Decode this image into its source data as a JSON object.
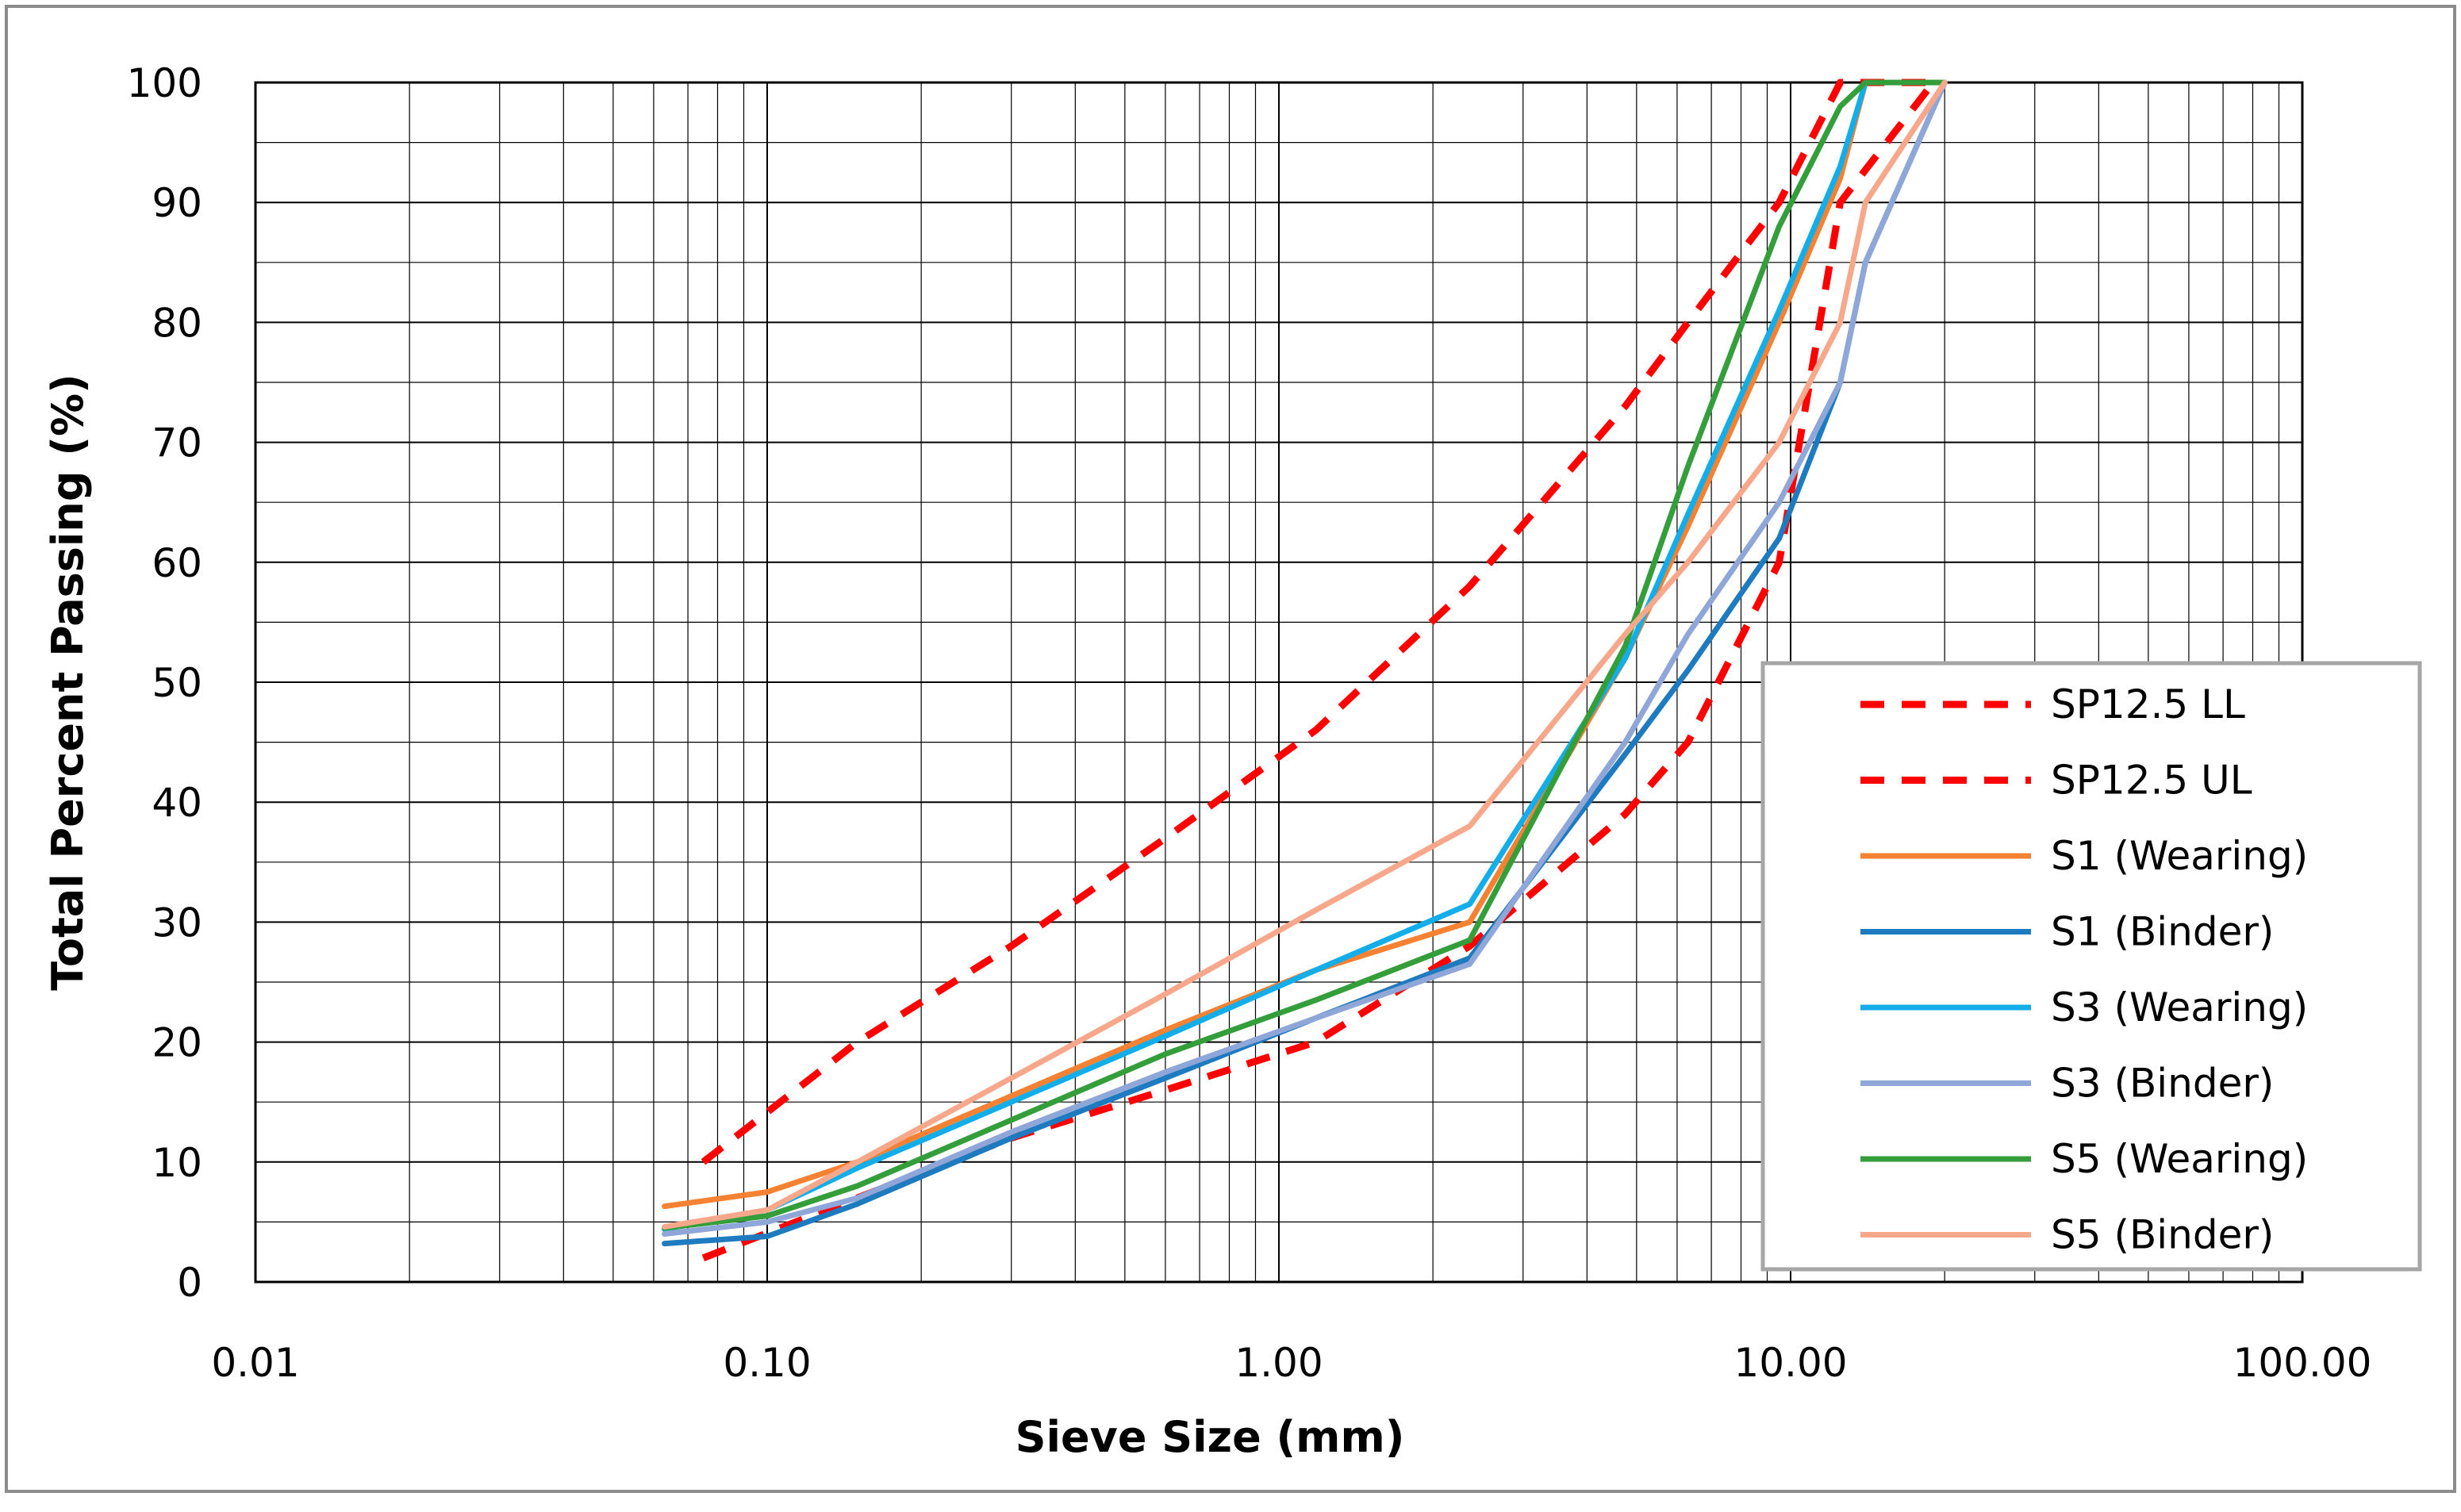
{
  "chart_data": {
    "type": "line",
    "title": "",
    "xlabel": "Sieve Size (mm)",
    "ylabel": "Total Percent Passing (%)",
    "xscale": "log",
    "xlim": [
      0.01,
      100
    ],
    "ylim": [
      0,
      100
    ],
    "grid": true,
    "legend_position": "bottom-right",
    "x_tick_labels": [
      "0.01",
      "0.10",
      "1.00",
      "10.00",
      "100.00"
    ],
    "y_tick_labels": [
      "0",
      "10",
      "20",
      "30",
      "40",
      "50",
      "60",
      "70",
      "80",
      "90",
      "100"
    ],
    "series": [
      {
        "name": "SP12.5 LL",
        "color": "#ff0000",
        "dash": true,
        "x": [
          0.075,
          0.15,
          0.3,
          0.6,
          1.18,
          2.36,
          4.75,
          6.3,
          9.5,
          12.5,
          19
        ],
        "y": [
          2,
          7,
          12,
          16,
          20,
          28,
          39,
          45,
          60,
          90,
          100
        ]
      },
      {
        "name": "SP12.5 UL",
        "color": "#ff0000",
        "dash": true,
        "x": [
          0.075,
          0.15,
          0.3,
          0.6,
          1.18,
          2.36,
          4.75,
          6.3,
          9.5,
          12.5,
          19
        ],
        "y": [
          10,
          20,
          28,
          37,
          46,
          58,
          73,
          80,
          90,
          100,
          100
        ]
      },
      {
        "name": "S1 (Wearing)",
        "color": "#f58232",
        "x": [
          0.063,
          0.1,
          0.15,
          0.3,
          0.6,
          1.18,
          2.36,
          4.75,
          6.3,
          9.5,
          12.5,
          14,
          20
        ],
        "y": [
          6.3,
          7.5,
          10,
          15.5,
          21,
          26,
          30,
          52,
          63,
          80,
          92,
          100,
          100
        ]
      },
      {
        "name": "S1 (Binder)",
        "color": "#1f7bbf",
        "x": [
          0.063,
          0.1,
          0.15,
          0.3,
          0.6,
          1.18,
          2.36,
          4.75,
          6.3,
          9.5,
          12.5,
          14,
          20
        ],
        "y": [
          3.2,
          3.8,
          6.5,
          12,
          17,
          22,
          27,
          44,
          51,
          62,
          75,
          85,
          100
        ]
      },
      {
        "name": "S3 (Wearing)",
        "color": "#13aeea",
        "x": [
          0.063,
          0.1,
          0.15,
          0.3,
          0.6,
          1.18,
          2.36,
          4.75,
          6.3,
          9.5,
          12.5,
          14,
          20
        ],
        "y": [
          4.4,
          6,
          9.5,
          15,
          20.5,
          26,
          31.5,
          52,
          64,
          81,
          93,
          100,
          100
        ]
      },
      {
        "name": "S3 (Binder)",
        "color": "#8ea6d8",
        "x": [
          0.063,
          0.1,
          0.15,
          0.3,
          0.6,
          1.18,
          2.36,
          4.75,
          6.3,
          9.5,
          12.5,
          14,
          20
        ],
        "y": [
          4,
          5,
          7,
          12.5,
          17.5,
          22,
          26.5,
          45,
          54,
          65,
          75,
          85,
          100
        ]
      },
      {
        "name": "S5 (Wearing)",
        "color": "#339e3a",
        "x": [
          0.063,
          0.1,
          0.15,
          0.3,
          0.6,
          1.18,
          2.36,
          4.75,
          6.3,
          9.5,
          12.5,
          14,
          20
        ],
        "y": [
          4.5,
          5.5,
          8,
          13.5,
          19,
          23.5,
          28.5,
          53,
          68,
          88,
          98,
          100,
          100
        ]
      },
      {
        "name": "S5 (Binder)",
        "color": "#f8a88a",
        "x": [
          0.063,
          0.1,
          0.15,
          0.3,
          0.6,
          1.18,
          2.36,
          4.75,
          6.3,
          9.5,
          12.5,
          14,
          20
        ],
        "y": [
          4.6,
          6,
          10,
          17,
          24,
          31,
          38,
          54,
          60,
          70,
          80,
          90,
          100
        ]
      }
    ]
  }
}
